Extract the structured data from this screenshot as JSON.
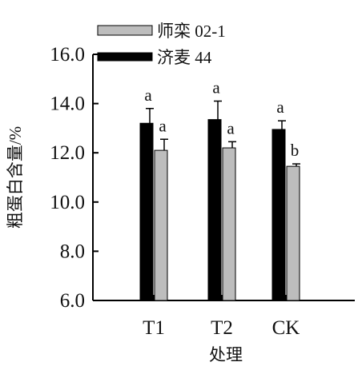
{
  "chart_data": {
    "type": "bar",
    "title": "",
    "xlabel": "处理",
    "ylabel": "粗蛋白含量/%",
    "categories": [
      "T1",
      "T2",
      "CK"
    ],
    "ylim": [
      6.0,
      16.0
    ],
    "yticks": [
      6.0,
      8.0,
      10.0,
      12.0,
      14.0,
      16.0
    ],
    "ytick_labels": [
      "6.0",
      "8.0",
      "10.0",
      "12.0",
      "14.0",
      "16.0"
    ],
    "grid": false,
    "legend_position": "top-left",
    "series": [
      {
        "name": "济麦 44",
        "color": "#000000",
        "values": [
          13.2,
          13.35,
          12.95
        ],
        "errors": [
          0.6,
          0.75,
          0.35
        ],
        "significance": [
          "a",
          "a",
          "a"
        ]
      },
      {
        "name": "师栾 02-1",
        "color": "#bdbdbd",
        "values": [
          12.1,
          12.2,
          11.45
        ],
        "errors": [
          0.45,
          0.25,
          0.1
        ],
        "significance": [
          "a",
          "a",
          "b"
        ]
      }
    ],
    "legend_order": [
      1,
      0
    ]
  }
}
